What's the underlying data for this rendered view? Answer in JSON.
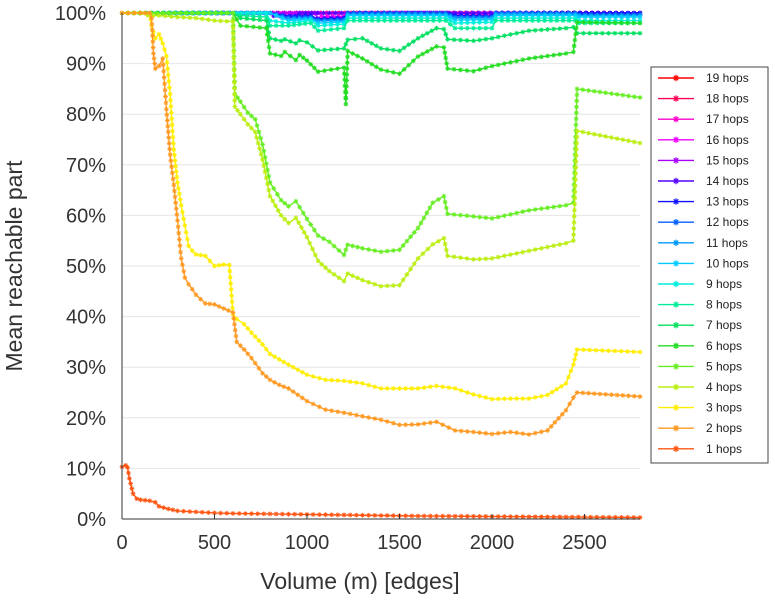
{
  "chart_data": {
    "type": "line",
    "title": "",
    "xlabel": "Volume (m) [edges]",
    "ylabel": "Mean reachable part",
    "xlim": [
      0,
      2800
    ],
    "ylim": [
      0,
      100
    ],
    "xticks": [
      0,
      500,
      1000,
      1500,
      2000,
      2500
    ],
    "xtick_labels": [
      "0",
      "500",
      "1000",
      "1500",
      "2000",
      "2500"
    ],
    "yticks": [
      0,
      10,
      20,
      30,
      40,
      50,
      60,
      70,
      80,
      90,
      100
    ],
    "ytick_labels": [
      "0%",
      "10%",
      "20%",
      "30%",
      "40%",
      "50%",
      "60%",
      "70%",
      "80%",
      "90%",
      "100%"
    ],
    "grid": "horizontal",
    "legend_position": "right",
    "series": [
      {
        "name": "19 hops",
        "color": "#ff0000",
        "x": [
          0,
          2800
        ],
        "y": [
          100,
          100
        ]
      },
      {
        "name": "18 hops",
        "color": "#ff0055",
        "x": [
          0,
          2800
        ],
        "y": [
          100,
          100
        ]
      },
      {
        "name": "17 hops",
        "color": "#ff00cc",
        "x": [
          0,
          2800
        ],
        "y": [
          100,
          100
        ]
      },
      {
        "name": "16 hops",
        "color": "#ee00ff",
        "x": [
          0,
          1060,
          1080,
          1200,
          1220,
          2800
        ],
        "y": [
          100,
          100,
          99.3,
          99.3,
          100,
          100
        ]
      },
      {
        "name": "15 hops",
        "color": "#aa00ff",
        "x": [
          0,
          1040,
          1060,
          1200,
          1220,
          2800
        ],
        "y": [
          100,
          100,
          98.9,
          99.1,
          100,
          100
        ]
      },
      {
        "name": "14 hops",
        "color": "#5500ff",
        "x": [
          0,
          800,
          820,
          940,
          960,
          2800
        ],
        "y": [
          100,
          100,
          99.4,
          99.4,
          100,
          100
        ]
      },
      {
        "name": "13 hops",
        "color": "#1010ff",
        "x": [
          0,
          800,
          900,
          1020,
          1060,
          1200,
          1220,
          1750,
          1800,
          2000,
          2020,
          2800
        ],
        "y": [
          100,
          100,
          99.3,
          99.5,
          98.8,
          99,
          100,
          100,
          99.5,
          99.4,
          100,
          100
        ]
      },
      {
        "name": "12 hops",
        "color": "#0060ff",
        "x": [
          0,
          800,
          900,
          1020,
          1060,
          1200,
          1220,
          1750,
          1800,
          2000,
          2020,
          2450,
          2470,
          2800
        ],
        "y": [
          100,
          100,
          99.1,
          99.2,
          98.6,
          98.7,
          100,
          100,
          99.2,
          99.2,
          100,
          100,
          99.7,
          99.7
        ]
      },
      {
        "name": "11 hops",
        "color": "#0099ff",
        "x": [
          0,
          800,
          900,
          1020,
          1060,
          1200,
          1220,
          1750,
          1800,
          2000,
          2020,
          2450,
          2470,
          2800
        ],
        "y": [
          100,
          100,
          98.8,
          99,
          98.4,
          98.5,
          99.7,
          99.7,
          99,
          99,
          99.8,
          99.8,
          99.5,
          99.5
        ]
      },
      {
        "name": "10 hops",
        "color": "#00ccff",
        "x": [
          0,
          800,
          900,
          1020,
          1060,
          1200,
          1220,
          1750,
          1800,
          2000,
          2020,
          2450,
          2470,
          2800
        ],
        "y": [
          100,
          100,
          98.5,
          98.8,
          98,
          98.2,
          99.5,
          99.5,
          98.6,
          98.7,
          99.5,
          99.5,
          99.2,
          99.2
        ]
      },
      {
        "name": "9 hops",
        "color": "#00eedd",
        "x": [
          0,
          780,
          800,
          900,
          1020,
          1060,
          1200,
          1220,
          1750,
          1800,
          2000,
          2020,
          2450,
          2470,
          2800
        ],
        "y": [
          100,
          100,
          98.5,
          98,
          98.5,
          97.5,
          97.8,
          99,
          99,
          98,
          98.2,
          99,
          99,
          98.5,
          98.5
        ]
      },
      {
        "name": "8 hops",
        "color": "#00ee99",
        "x": [
          0,
          600,
          640,
          780,
          800,
          900,
          1020,
          1060,
          1200,
          1220,
          1750,
          1800,
          2000,
          2020,
          2450,
          2470,
          2800
        ],
        "y": [
          100,
          100,
          99.5,
          99.2,
          97.5,
          97.5,
          98,
          96.5,
          97,
          98.5,
          98.5,
          97,
          97,
          98.5,
          98.5,
          98,
          98
        ]
      },
      {
        "name": "7 hops",
        "color": "#00e060",
        "x": [
          0,
          600,
          640,
          780,
          800,
          860,
          880,
          940,
          960,
          1000,
          1060,
          1200,
          1220,
          1300,
          1400,
          1500,
          1600,
          1700,
          1740,
          1760,
          1900,
          2000,
          2200,
          2400,
          2440,
          2460,
          2800
        ],
        "y": [
          100,
          100,
          99,
          98.5,
          95,
          94.5,
          94.8,
          94,
          94.6,
          94.2,
          92.6,
          93,
          94.7,
          95,
          93,
          92.5,
          95,
          97,
          96.8,
          94.8,
          94.5,
          95,
          96.5,
          97,
          97.2,
          96,
          96
        ]
      },
      {
        "name": "6 hops",
        "color": "#22dd22",
        "x": [
          0,
          600,
          640,
          780,
          800,
          860,
          880,
          940,
          960,
          1000,
          1060,
          1200,
          1210,
          1220,
          1300,
          1400,
          1500,
          1600,
          1700,
          1740,
          1760,
          1900,
          2000,
          2200,
          2400,
          2440,
          2460,
          2800
        ],
        "y": [
          100,
          100,
          97.5,
          97,
          92,
          91.5,
          92.3,
          90.7,
          91.7,
          90.6,
          88.4,
          89.2,
          82,
          92.5,
          91,
          88.8,
          88,
          91.4,
          93.4,
          93.2,
          89,
          88.5,
          89.5,
          91,
          92,
          92.3,
          98.2,
          98
        ]
      },
      {
        "name": "5 hops",
        "color": "#66ee22",
        "x": [
          0,
          600,
          610,
          640,
          680,
          720,
          760,
          800,
          860,
          900,
          940,
          1000,
          1060,
          1120,
          1200,
          1220,
          1300,
          1400,
          1500,
          1600,
          1680,
          1740,
          1760,
          1900,
          2000,
          2200,
          2400,
          2440,
          2460,
          2800
        ],
        "y": [
          100,
          100,
          84,
          82.5,
          80.3,
          79,
          74,
          66.5,
          63,
          61.8,
          62.8,
          59.3,
          56,
          54.8,
          52.2,
          54.2,
          53.5,
          52.8,
          53.2,
          57.5,
          62.5,
          63.8,
          60.3,
          59.8,
          59.4,
          61,
          62,
          62.5,
          85,
          83.3
        ]
      },
      {
        "name": "4 hops",
        "color": "#bbee11",
        "x": [
          0,
          100,
          140,
          200,
          300,
          400,
          500,
          600,
          610,
          640,
          680,
          720,
          760,
          800,
          860,
          900,
          940,
          1000,
          1060,
          1120,
          1200,
          1220,
          1300,
          1400,
          1500,
          1600,
          1680,
          1740,
          1760,
          1900,
          2000,
          2200,
          2400,
          2440,
          2460,
          2800
        ],
        "y": [
          100,
          100,
          99.5,
          99.5,
          99.2,
          99,
          98.5,
          98.3,
          81.5,
          80,
          78,
          76.5,
          71,
          63.8,
          60,
          58.5,
          59.5,
          55.7,
          51,
          49,
          47,
          48.5,
          47.2,
          46,
          46.2,
          51.5,
          54.3,
          55.5,
          52,
          51.3,
          51.5,
          53,
          54.5,
          55,
          76.7,
          74.3
        ]
      },
      {
        "name": "3 hops",
        "color": "#ffee00",
        "x": [
          0,
          100,
          150,
          160,
          180,
          200,
          220,
          240,
          260,
          280,
          300,
          320,
          340,
          360,
          380,
          400,
          450,
          500,
          550,
          580,
          600,
          620,
          660,
          700,
          760,
          800,
          900,
          1000,
          1100,
          1200,
          1300,
          1400,
          1500,
          1600,
          1700,
          1800,
          1900,
          2000,
          2100,
          2200,
          2300,
          2400,
          2440,
          2460,
          2800
        ],
        "y": [
          100,
          100,
          100,
          97.5,
          95,
          95.8,
          94,
          91.5,
          84,
          73,
          66.5,
          62,
          58,
          54,
          53,
          52.3,
          52,
          50,
          50.3,
          50.2,
          40.5,
          39.5,
          38.5,
          36.8,
          34.5,
          32.6,
          30.5,
          28.5,
          27.5,
          27.3,
          26.8,
          25.8,
          25.8,
          25.8,
          26.3,
          25.8,
          24.6,
          23.7,
          23.8,
          23.8,
          24.5,
          26.8,
          30.5,
          33.5,
          33
        ]
      },
      {
        "name": "2 hops",
        "color": "#ff9922",
        "x": [
          0,
          100,
          150,
          160,
          170,
          180,
          200,
          220,
          240,
          260,
          280,
          300,
          320,
          340,
          360,
          380,
          400,
          450,
          500,
          550,
          600,
          620,
          660,
          700,
          760,
          800,
          850,
          900,
          1000,
          1100,
          1200,
          1300,
          1400,
          1500,
          1600,
          1700,
          1800,
          1900,
          2000,
          2100,
          2200,
          2300,
          2400,
          2440,
          2460,
          2800
        ],
        "y": [
          100,
          100,
          100,
          99,
          92,
          89,
          89.5,
          91,
          81,
          72,
          66,
          59,
          51.5,
          47.7,
          46.4,
          45.4,
          44.3,
          42.6,
          42.4,
          41.6,
          40.8,
          35,
          33.5,
          31.8,
          28.8,
          27.5,
          26.5,
          25.8,
          23.3,
          21.6,
          21,
          20.3,
          19.6,
          18.6,
          18.7,
          19.2,
          17.5,
          17.2,
          16.8,
          17.2,
          16.7,
          17.5,
          21.5,
          24,
          25,
          24.2
        ]
      },
      {
        "name": "1 hops",
        "color": "#ff5511",
        "x": [
          0,
          20,
          30,
          40,
          60,
          80,
          100,
          150,
          180,
          200,
          250,
          300,
          400,
          500,
          600,
          800,
          1000,
          1200,
          1400,
          1600,
          1800,
          2000,
          2200,
          2400,
          2600,
          2800
        ],
        "y": [
          10.3,
          10.6,
          10.2,
          8,
          5,
          4,
          3.8,
          3.6,
          3.3,
          2.5,
          2,
          1.6,
          1.4,
          1.2,
          1.1,
          1,
          0.9,
          0.8,
          0.7,
          0.6,
          0.55,
          0.5,
          0.45,
          0.4,
          0.35,
          0.3
        ]
      }
    ]
  }
}
